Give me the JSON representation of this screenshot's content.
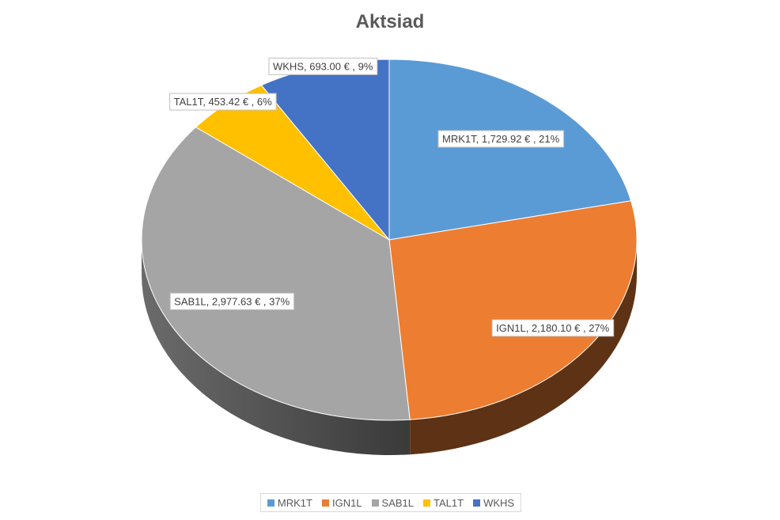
{
  "chart_data": {
    "type": "pie",
    "title": "Aktsiad",
    "categories": [
      "MRK1T",
      "IGN1L",
      "SAB1L",
      "TAL1T",
      "WKHS"
    ],
    "values": [
      1729.92,
      2180.1,
      2977.63,
      453.42,
      693.0
    ],
    "percents": [
      21,
      27,
      37,
      6,
      9
    ],
    "data_labels": [
      "MRK1T,  1,729.92 € , 21%",
      "IGN1L,  2,180.10 € , 27%",
      "SAB1L,  2,977.63 € , 37%",
      "TAL1T,  453.42 € , 6%",
      "WKHS,  693.00 € , 9%"
    ],
    "colors": [
      "#5b9bd5",
      "#ed7d31",
      "#a5a5a5",
      "#ffc000",
      "#4472c4"
    ],
    "shadow_colors": [
      "#2e5a87",
      "#5e3214",
      "#4d4d4d",
      "#7a5c00",
      "#213a6b"
    ],
    "legend": "bottom",
    "style": "3d"
  }
}
